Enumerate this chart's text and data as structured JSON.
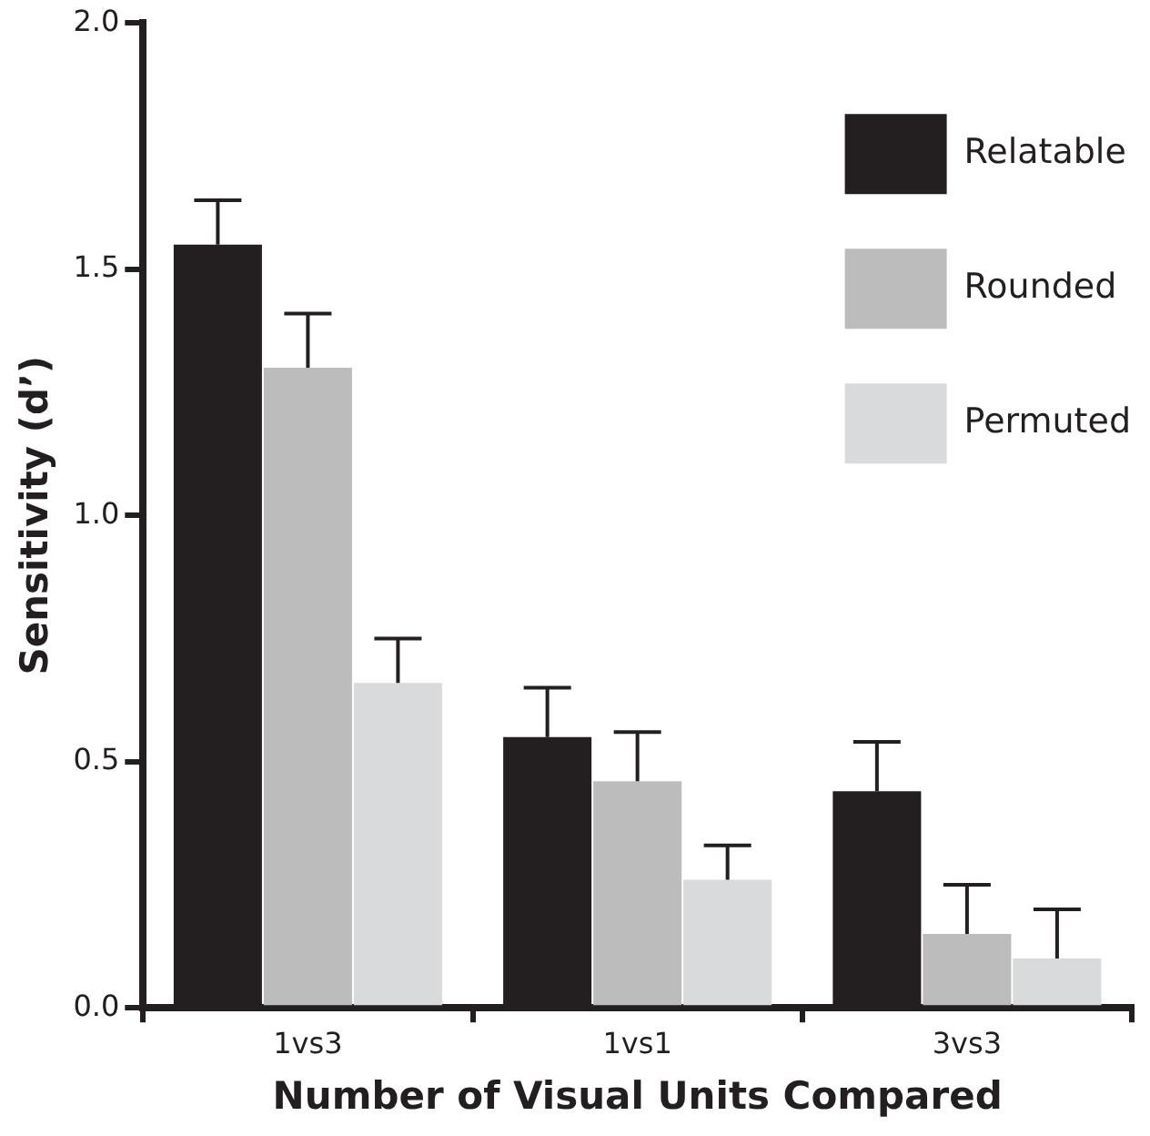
{
  "chart_data": {
    "type": "bar",
    "xlabel": "Number of Visual Units Compared",
    "ylabel": "Sensitivity (d’)",
    "categories": [
      "1vs3",
      "1vs1",
      "3vs3"
    ],
    "series": [
      {
        "name": "Relatable",
        "color": "#231f20",
        "values": [
          1.55,
          0.55,
          0.44
        ],
        "errors": [
          [
            1.55,
            1.64
          ],
          [
            0.55,
            0.65
          ],
          [
            0.44,
            0.54
          ]
        ]
      },
      {
        "name": "Rounded",
        "color": "#bcbcbc",
        "values": [
          1.3,
          0.46,
          0.15
        ],
        "errors": [
          [
            1.3,
            1.41
          ],
          [
            0.46,
            0.56
          ],
          [
            0.15,
            0.25
          ]
        ]
      },
      {
        "name": "Permuted",
        "color": "#d9dadb",
        "values": [
          0.66,
          0.26,
          0.1
        ],
        "errors": [
          [
            0.66,
            0.75
          ],
          [
            0.26,
            0.33
          ],
          [
            0.1,
            0.2
          ]
        ]
      }
    ],
    "ylim": [
      0,
      2.0
    ],
    "yticks": [
      {
        "value": 0,
        "label": "0.0"
      },
      0.5,
      {
        "value": 1,
        "label": "1.0"
      },
      1.5,
      {
        "value": 2,
        "label": "2.0"
      }
    ],
    "grid": false,
    "legend": "top right"
  }
}
